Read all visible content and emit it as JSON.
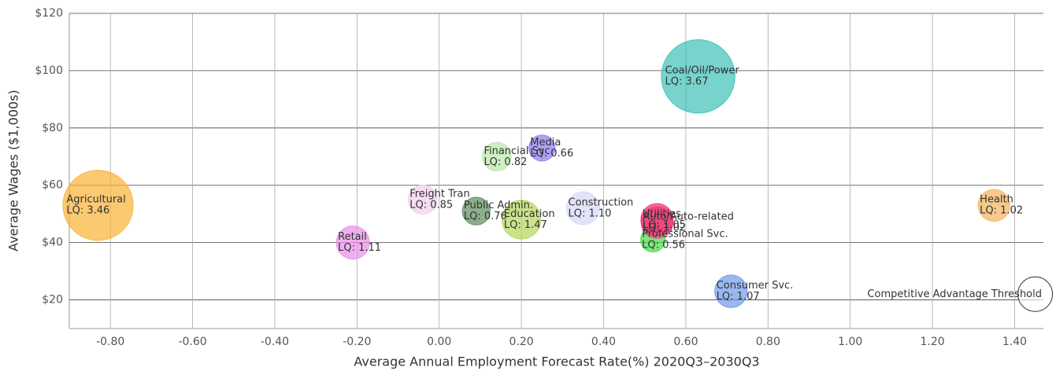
{
  "chart_data": {
    "type": "scatter",
    "x_label": "Average Annual Employment Forecast Rate(%) 2020Q3–2030Q3",
    "y_label": "Average Wages ($1,000s)",
    "xlim": [
      -0.9,
      1.47
    ],
    "ylim": [
      10,
      120
    ],
    "xticks": [
      {
        "value": -0.8,
        "label": "-0.80"
      },
      {
        "value": -0.6,
        "label": "-0.60"
      },
      {
        "value": -0.4,
        "label": "-0.40"
      },
      {
        "value": -0.2,
        "label": "-0.20"
      },
      {
        "value": 0,
        "label": "0.00"
      },
      {
        "value": 0.2,
        "label": "0.20"
      },
      {
        "value": 0.4,
        "label": "0.40"
      },
      {
        "value": 0.6,
        "label": "0.60"
      },
      {
        "value": 0.8,
        "label": "0.80"
      },
      {
        "value": 1,
        "label": "1.00"
      },
      {
        "value": 1.2,
        "label": "1.20"
      },
      {
        "value": 1.4,
        "label": "1.40"
      }
    ],
    "yticks": [
      {
        "value": 20,
        "label": "$20"
      },
      {
        "value": 40,
        "label": "$40"
      },
      {
        "value": 60,
        "label": "$60"
      },
      {
        "value": 80,
        "label": "$80"
      },
      {
        "value": 100,
        "label": "$100"
      },
      {
        "value": 120,
        "label": "$120"
      }
    ],
    "grid": true,
    "points": [
      {
        "name": "Agricultural",
        "x": -0.83,
        "y": 53,
        "lq": 3.46,
        "lq_label": "LQ: 3.46",
        "color": "#f9b233"
      },
      {
        "name": "Retail",
        "x": -0.21,
        "y": 40,
        "lq": 1.11,
        "lq_label": "LQ: 1.11",
        "color": "#e98ee8"
      },
      {
        "name": "Freight Tran",
        "x": -0.04,
        "y": 55,
        "lq": 0.85,
        "lq_label": "LQ: 0.85",
        "color": "#f3cdef"
      },
      {
        "name": "Public Admin.",
        "x": 0.09,
        "y": 51,
        "lq": 0.76,
        "lq_label": "LQ: 0.76",
        "color": "#5b8c5a"
      },
      {
        "name": "Education",
        "x": 0.2,
        "y": 48,
        "lq": 1.47,
        "lq_label": "LQ: 1.47",
        "color": "#b5d65a"
      },
      {
        "name": "Financial Svc.",
        "x": 0.14,
        "y": 70,
        "lq": 0.82,
        "lq_label": "LQ: 0.82",
        "color": "#b8e8a8"
      },
      {
        "name": "Media",
        "x": 0.25,
        "y": 73,
        "lq": 0.66,
        "lq_label": "LQ: 0.66",
        "color": "#8a7bef"
      },
      {
        "name": "Construction",
        "x": 0.35,
        "y": 52,
        "lq": 1.1,
        "lq_label": "LQ: 1.10",
        "color": "#d5daf7"
      },
      {
        "name": "Professional Svc.",
        "x": 0.52,
        "y": 41,
        "lq": 0.56,
        "lq_label": "LQ: 0.56",
        "color": "#44dd44"
      },
      {
        "name": "Auto/Auto-related",
        "x": 0.53,
        "y": 47,
        "lq": 1.02,
        "lq_label": "LQ: 1.02",
        "color": "#e85090"
      },
      {
        "name": "Utilities",
        "x": 0.53,
        "y": 48,
        "lq": 1.05,
        "lq_label": "LQ: 1.05",
        "color": "#f0306a"
      },
      {
        "name": "Consumer Svc.",
        "x": 0.71,
        "y": 23,
        "lq": 1.07,
        "lq_label": "LQ: 1.07",
        "color": "#6f9ae8"
      },
      {
        "name": "Coal/Oil/Power",
        "x": 0.63,
        "y": 98,
        "lq": 3.67,
        "lq_label": "LQ: 3.67",
        "color": "#3fc0b8"
      },
      {
        "name": "Health",
        "x": 1.35,
        "y": 53,
        "lq": 1.02,
        "lq_label": "LQ: 1.02",
        "color": "#f4b45a"
      }
    ],
    "threshold_label": "Competitive Advantage Threshold"
  }
}
